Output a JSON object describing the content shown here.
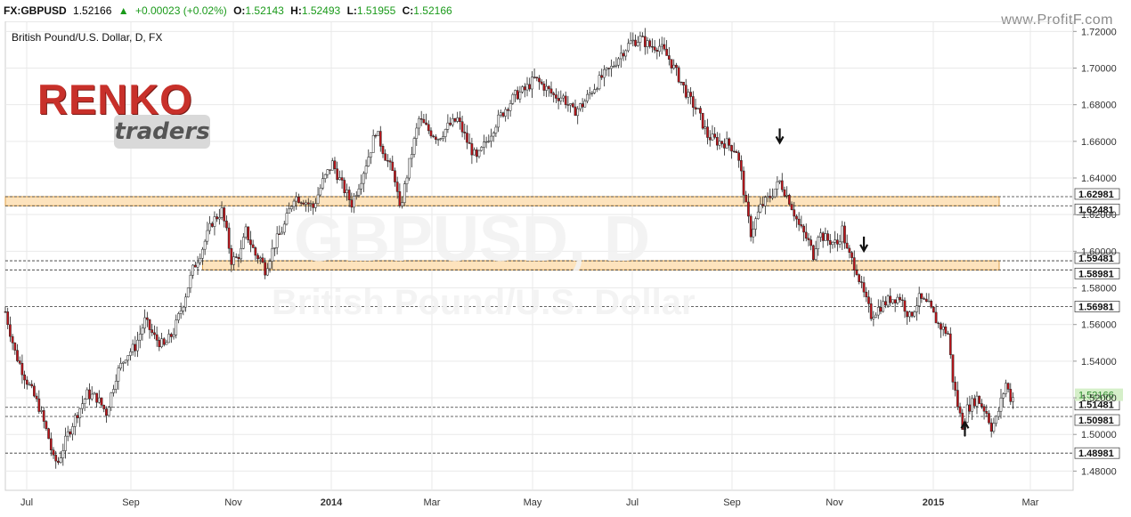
{
  "header": {
    "symbol": "FX:GBPUSD",
    "last": "1.52166",
    "change": "+0.00023 (+0.02%)",
    "o_label": "O:",
    "o_value": "1.52143",
    "h_label": "H:",
    "h_value": "1.52493",
    "l_label": "L:",
    "l_value": "1.51955",
    "c_label": "C:",
    "c_value": "1.52166",
    "site": "www.ProfitF.com"
  },
  "logo": {
    "word1": "RENKO",
    "word2": "traders"
  },
  "watermark": {
    "big": "GBPUSD, D",
    "sub": "British Pound/U.S. Dollar"
  },
  "chart_data": {
    "type": "candlestick",
    "title": "British Pound/U.S. Dollar, D, FX",
    "x_ticks": [
      "Jul",
      "Sep",
      "Nov",
      "2014",
      "Mar",
      "May",
      "Jul",
      "Sep",
      "Nov",
      "2015",
      "Mar"
    ],
    "y_ticks": [
      "1.48000",
      "1.50000",
      "1.52000",
      "1.54000",
      "1.56000",
      "1.58000",
      "1.60000",
      "1.62000",
      "1.64000",
      "1.66000",
      "1.68000",
      "1.70000",
      "1.72000"
    ],
    "ylim": [
      1.4695,
      1.7255
    ],
    "price_path": [
      [
        0,
        1.567
      ],
      [
        4,
        1.545
      ],
      [
        8,
        1.532
      ],
      [
        14,
        1.515
      ],
      [
        18,
        1.498
      ],
      [
        20,
        1.486
      ],
      [
        22,
        1.485
      ],
      [
        26,
        1.5
      ],
      [
        30,
        1.512
      ],
      [
        34,
        1.522
      ],
      [
        38,
        1.52
      ],
      [
        42,
        1.512
      ],
      [
        46,
        1.532
      ],
      [
        50,
        1.543
      ],
      [
        54,
        1.548
      ],
      [
        58,
        1.562
      ],
      [
        62,
        1.553
      ],
      [
        66,
        1.548
      ],
      [
        70,
        1.556
      ],
      [
        74,
        1.572
      ],
      [
        78,
        1.59
      ],
      [
        82,
        1.602
      ],
      [
        86,
        1.616
      ],
      [
        90,
        1.622
      ],
      [
        92,
        1.61
      ],
      [
        94,
        1.595
      ],
      [
        96,
        1.596
      ],
      [
        98,
        1.6
      ],
      [
        100,
        1.611
      ],
      [
        104,
        1.598
      ],
      [
        106,
        1.596
      ],
      [
        108,
        1.59
      ],
      [
        112,
        1.604
      ],
      [
        116,
        1.614
      ],
      [
        120,
        1.63
      ],
      [
        124,
        1.628
      ],
      [
        128,
        1.624
      ],
      [
        132,
        1.638
      ],
      [
        136,
        1.648
      ],
      [
        140,
        1.636
      ],
      [
        144,
        1.626
      ],
      [
        148,
        1.64
      ],
      [
        152,
        1.656
      ],
      [
        154,
        1.666
      ],
      [
        158,
        1.652
      ],
      [
        162,
        1.64
      ],
      [
        164,
        1.622
      ],
      [
        168,
        1.648
      ],
      [
        172,
        1.672
      ],
      [
        176,
        1.666
      ],
      [
        180,
        1.662
      ],
      [
        184,
        1.668
      ],
      [
        188,
        1.672
      ],
      [
        192,
        1.66
      ],
      [
        196,
        1.65
      ],
      [
        200,
        1.66
      ],
      [
        204,
        1.67
      ],
      [
        208,
        1.678
      ],
      [
        212,
        1.685
      ],
      [
        216,
        1.688
      ],
      [
        220,
        1.694
      ],
      [
        224,
        1.69
      ],
      [
        228,
        1.685
      ],
      [
        232,
        1.684
      ],
      [
        236,
        1.676
      ],
      [
        240,
        1.68
      ],
      [
        244,
        1.688
      ],
      [
        248,
        1.695
      ],
      [
        252,
        1.7
      ],
      [
        256,
        1.708
      ],
      [
        260,
        1.714
      ],
      [
        264,
        1.716
      ],
      [
        268,
        1.712
      ],
      [
        272,
        1.712
      ],
      [
        276,
        1.705
      ],
      [
        280,
        1.695
      ],
      [
        284,
        1.684
      ],
      [
        288,
        1.676
      ],
      [
        292,
        1.663
      ],
      [
        296,
        1.66
      ],
      [
        300,
        1.659
      ],
      [
        304,
        1.655
      ],
      [
        306,
        1.642
      ],
      [
        308,
        1.624
      ],
      [
        310,
        1.61
      ],
      [
        314,
        1.624
      ],
      [
        318,
        1.63
      ],
      [
        322,
        1.638
      ],
      [
        326,
        1.628
      ],
      [
        330,
        1.614
      ],
      [
        334,
        1.605
      ],
      [
        336,
        1.598
      ],
      [
        338,
        1.61
      ],
      [
        342,
        1.606
      ],
      [
        346,
        1.604
      ],
      [
        348,
        1.612
      ],
      [
        350,
        1.6
      ],
      [
        354,
        1.59
      ],
      [
        356,
        1.58
      ],
      [
        360,
        1.565
      ],
      [
        364,
        1.57
      ],
      [
        368,
        1.574
      ],
      [
        372,
        1.575
      ],
      [
        376,
        1.564
      ],
      [
        380,
        1.574
      ],
      [
        384,
        1.57
      ],
      [
        388,
        1.56
      ],
      [
        392,
        1.555
      ],
      [
        394,
        1.53
      ],
      [
        396,
        1.516
      ],
      [
        398,
        1.505
      ],
      [
        400,
        1.514
      ],
      [
        404,
        1.52
      ],
      [
        408,
        1.512
      ],
      [
        410,
        1.504
      ],
      [
        412,
        1.508
      ],
      [
        414,
        1.518
      ],
      [
        416,
        1.528
      ],
      [
        418,
        1.52
      ]
    ],
    "last_price": 1.52166,
    "levels": [
      {
        "value": 1.62981,
        "label": "1.62981"
      },
      {
        "value": 1.62481,
        "label": "1.62481"
      },
      {
        "value": 1.59481,
        "label": "1.59481"
      },
      {
        "value": 1.58981,
        "label": "1.58981"
      },
      {
        "value": 1.56981,
        "label": "1.56981"
      },
      {
        "value": 1.51481,
        "label": "1.51481"
      },
      {
        "value": 1.50981,
        "label": "1.50981"
      },
      {
        "value": 1.48981,
        "label": "1.48981"
      }
    ],
    "zones": [
      {
        "top": 1.62981,
        "bottom": 1.62481,
        "start_bar": 0,
        "color": "#fde3bd",
        "border": "#e0a24a"
      },
      {
        "top": 1.59481,
        "bottom": 1.58981,
        "start_bar": 82,
        "color": "#fde3bd",
        "border": "#e0a24a"
      }
    ],
    "arrows": [
      {
        "bar": 322,
        "value": 1.667,
        "dir": "down"
      },
      {
        "bar": 357,
        "value": 1.608,
        "dir": "down"
      },
      {
        "bar": 399,
        "value": 1.499,
        "dir": "up"
      }
    ],
    "total_bars": 420,
    "bar_range": [
      0,
      444
    ]
  },
  "colors": {
    "up": "#2e2e2e",
    "down": "#c0141a",
    "grid": "#e9e9e9",
    "axis_text": "#333333"
  }
}
